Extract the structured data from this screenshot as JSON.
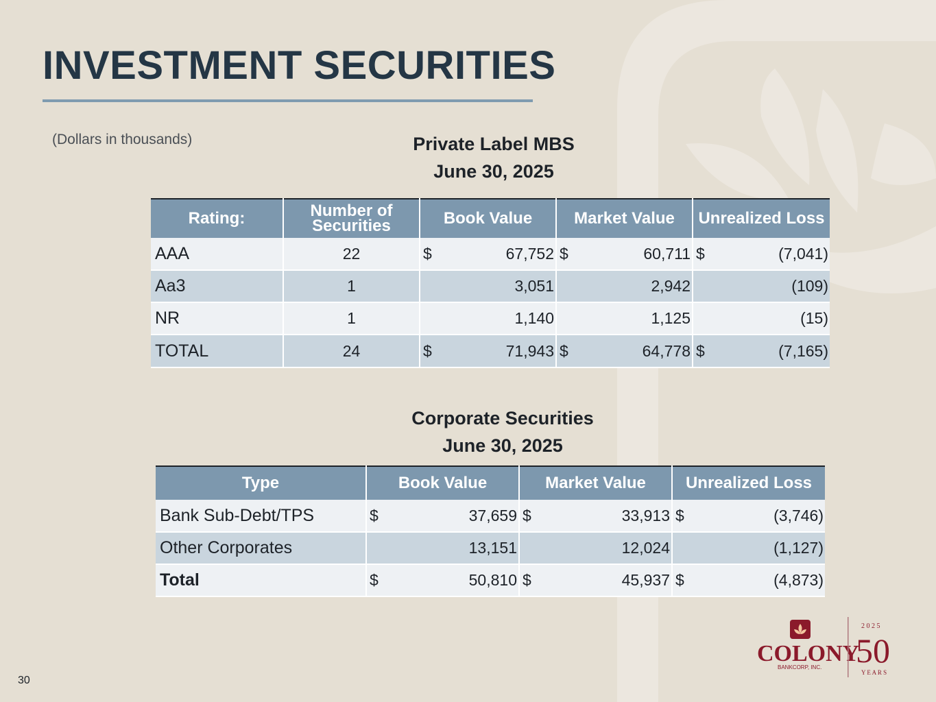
{
  "page": {
    "title": "INVESTMENT SECURITIES",
    "note": "(Dollars in thousands)",
    "page_number": "30"
  },
  "mbs": {
    "heading_line1": "Private Label MBS",
    "heading_line2": "June 30, 2025",
    "columns": [
      "Rating:",
      "Number of Securities",
      "Book Value",
      "Market Value",
      "Unrealized Loss"
    ],
    "rows": [
      {
        "rating": "AAA",
        "count": "22",
        "book_cur": "$",
        "book": "67,752",
        "market_cur": "$",
        "market": "60,711",
        "loss_cur": "$",
        "loss": "(7,041)"
      },
      {
        "rating": "Aa3",
        "count": "1",
        "book_cur": "",
        "book": "3,051",
        "market_cur": "",
        "market": "2,942",
        "loss_cur": "",
        "loss": "(109)"
      },
      {
        "rating": "NR",
        "count": "1",
        "book_cur": "",
        "book": "1,140",
        "market_cur": "",
        "market": "1,125",
        "loss_cur": "",
        "loss": "(15)"
      },
      {
        "rating": "TOTAL",
        "count": "24",
        "book_cur": "$",
        "book": "71,943",
        "market_cur": "$",
        "market": "64,778",
        "loss_cur": "$",
        "loss": "(7,165)"
      }
    ]
  },
  "corporate": {
    "heading_line1": "Corporate Securities",
    "heading_line2": "June 30, 2025",
    "columns": [
      "Type",
      "Book Value",
      "Market Value",
      "Unrealized Loss"
    ],
    "rows": [
      {
        "type": "Bank Sub-Debt/TPS",
        "book_cur": "$",
        "book": "37,659",
        "market_cur": "$",
        "market": "33,913",
        "loss_cur": "$",
        "loss": "(3,746)"
      },
      {
        "type": "Other Corporates",
        "book_cur": "",
        "book": "13,151",
        "market_cur": "",
        "market": "12,024",
        "loss_cur": "",
        "loss": "(1,127)"
      },
      {
        "type": "Total",
        "book_cur": "$",
        "book": "50,810",
        "market_cur": "$",
        "market": "45,937",
        "loss_cur": "$",
        "loss": "(4,873)"
      }
    ]
  },
  "logo": {
    "name": "COLONY",
    "sub": "BANKCORP, INC.",
    "years_top": "2 0 2 5",
    "years_number": "50",
    "years_bottom": "Y E A R S",
    "brand_color": "#8b1a2b"
  }
}
